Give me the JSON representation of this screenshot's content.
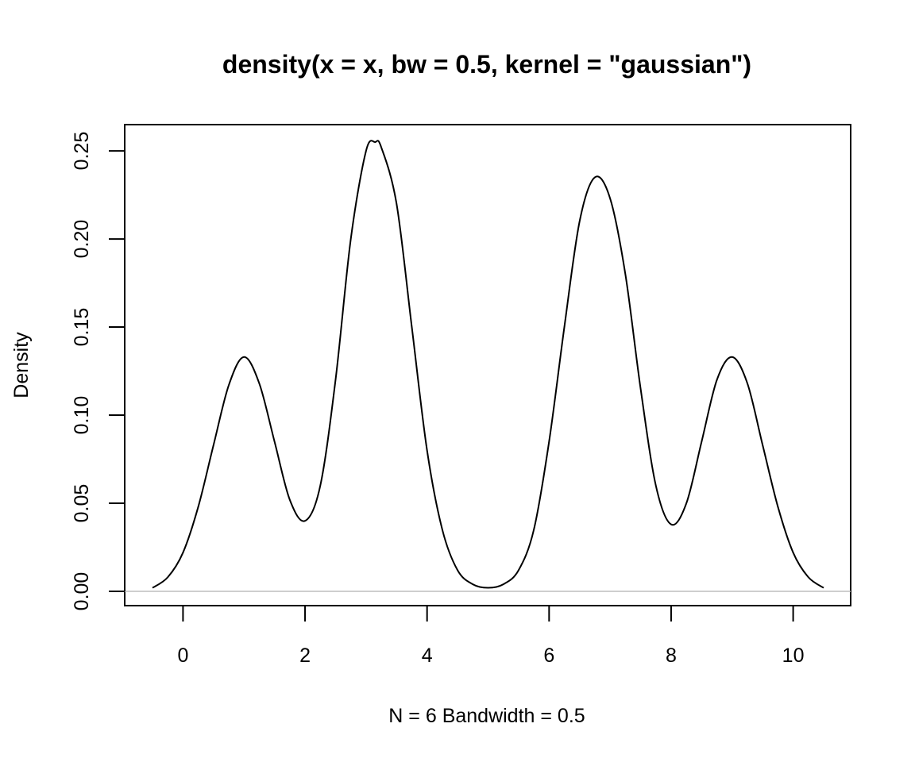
{
  "chart_data": {
    "type": "line",
    "title": "density(x = x, bw = 0.5, kernel = \"gaussian\")",
    "xlabel": "N = 6   Bandwidth = 0.5",
    "ylabel": "Density",
    "xlim": [
      -0.5,
      10.5
    ],
    "ylim": [
      0.0,
      0.255
    ],
    "x_ticks": [
      0,
      2,
      4,
      6,
      8,
      10
    ],
    "x_tick_labels": [
      "0",
      "2",
      "4",
      "6",
      "8",
      "10"
    ],
    "y_ticks": [
      0.0,
      0.05,
      0.1,
      0.15,
      0.2,
      0.25
    ],
    "y_tick_labels": [
      "0.00",
      "0.05",
      "0.10",
      "0.15",
      "0.20",
      "0.25"
    ],
    "baseline": 0,
    "series": [
      {
        "x": [
          -0.5,
          -0.25,
          0,
          0.25,
          0.5,
          0.75,
          1.0,
          1.25,
          1.5,
          1.75,
          2.0,
          2.25,
          2.5,
          2.75,
          3.0,
          3.15,
          3.25,
          3.5,
          3.75,
          4.0,
          4.25,
          4.5,
          4.75,
          5.0,
          5.25,
          5.5,
          5.75,
          6.0,
          6.25,
          6.5,
          6.75,
          7.0,
          7.25,
          7.5,
          7.75,
          8.0,
          8.25,
          8.5,
          8.75,
          9.0,
          9.25,
          9.5,
          9.75,
          10.0,
          10.25,
          10.5
        ],
        "y": [
          0.002,
          0.008,
          0.022,
          0.048,
          0.083,
          0.117,
          0.133,
          0.118,
          0.085,
          0.052,
          0.04,
          0.06,
          0.12,
          0.2,
          0.25,
          0.255,
          0.252,
          0.22,
          0.15,
          0.08,
          0.035,
          0.012,
          0.004,
          0.002,
          0.004,
          0.012,
          0.035,
          0.085,
          0.15,
          0.21,
          0.235,
          0.223,
          0.18,
          0.115,
          0.06,
          0.038,
          0.05,
          0.085,
          0.12,
          0.133,
          0.118,
          0.083,
          0.048,
          0.022,
          0.008,
          0.002
        ]
      }
    ]
  }
}
